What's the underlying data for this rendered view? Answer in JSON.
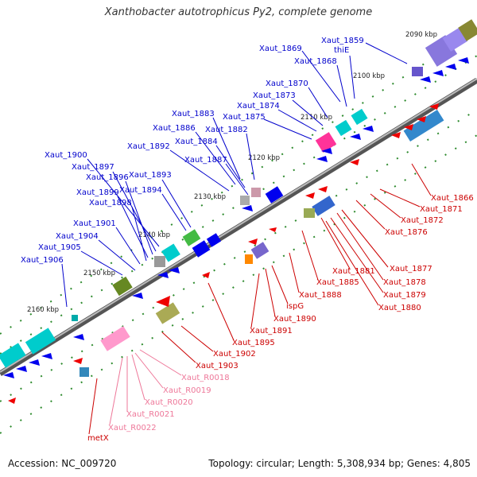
{
  "title": "Xanthobacter autotrophicus Py2, complete genome",
  "footer": {
    "accession": "Accession: NC_009720",
    "summary": "Topology: circular; Length: 5,308,934 bp; Genes: 4,805"
  },
  "colors": {
    "forward_label": "#0000cc",
    "reverse_label": "#cc0000",
    "rna_label": "#ee7799",
    "forward_gene": "#0000ee",
    "reverse_gene": "#ee0000",
    "rna_gene": "#ff99cc",
    "backbone": "#888888",
    "tick": "#228822"
  },
  "ticks": [
    "2090 kbp",
    "2100 kbp",
    "2110 kbp",
    "2120 kbp",
    "2130 kbp",
    "2140 kbp",
    "2150 kbp",
    "2160 kbp"
  ],
  "forward_labels": [
    "Xaut_1859",
    "thiE",
    "Xaut_1869",
    "Xaut_1868",
    "Xaut_1870",
    "Xaut_1873",
    "Xaut_1874",
    "Xaut_1875",
    "Xaut_1883",
    "Xaut_1886",
    "Xaut_1882",
    "Xaut_1884",
    "Xaut_1892",
    "Xaut_1887",
    "Xaut_1900",
    "Xaut_1897",
    "Xaut_1896",
    "Xaut_1893",
    "Xaut_1899",
    "Xaut_1894",
    "Xaut_1898",
    "Xaut_1901",
    "Xaut_1904",
    "Xaut_1905",
    "Xaut_1906"
  ],
  "reverse_labels": [
    "Xaut_1866",
    "Xaut_1871",
    "Xaut_1872",
    "Xaut_1876",
    "Xaut_1877",
    "Xaut_1881",
    "Xaut_1878",
    "Xaut_1885",
    "Xaut_1879",
    "Xaut_1888",
    "Xaut_1880",
    "ispG",
    "Xaut_1890",
    "Xaut_1891",
    "Xaut_1895",
    "Xaut_1902",
    "Xaut_1903",
    "metX"
  ],
  "rna_labels": [
    "Xaut_R0018",
    "Xaut_R0019",
    "Xaut_R0020",
    "Xaut_R0021",
    "Xaut_R0022"
  ]
}
